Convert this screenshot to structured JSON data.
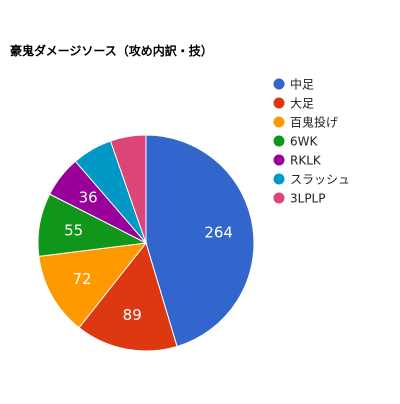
{
  "chart_data": {
    "type": "pie",
    "title": "豪鬼ダメージソース（攻め内訳・技）",
    "categories": [
      "中足",
      "大足",
      "百鬼投げ",
      "6WK",
      "RKLK",
      "スラッシュ",
      "3LPLP"
    ],
    "values": [
      264,
      89,
      72,
      55,
      36,
      35,
      31
    ],
    "data_labels": [
      "264",
      "89",
      "72",
      "55",
      "36",
      "",
      ""
    ],
    "colors": [
      "#3366cc",
      "#dc3912",
      "#ff9900",
      "#109618",
      "#990099",
      "#0099c6",
      "#dd4477"
    ],
    "legend_position": "right",
    "start_angle": "12 o'clock",
    "direction": "clockwise"
  }
}
